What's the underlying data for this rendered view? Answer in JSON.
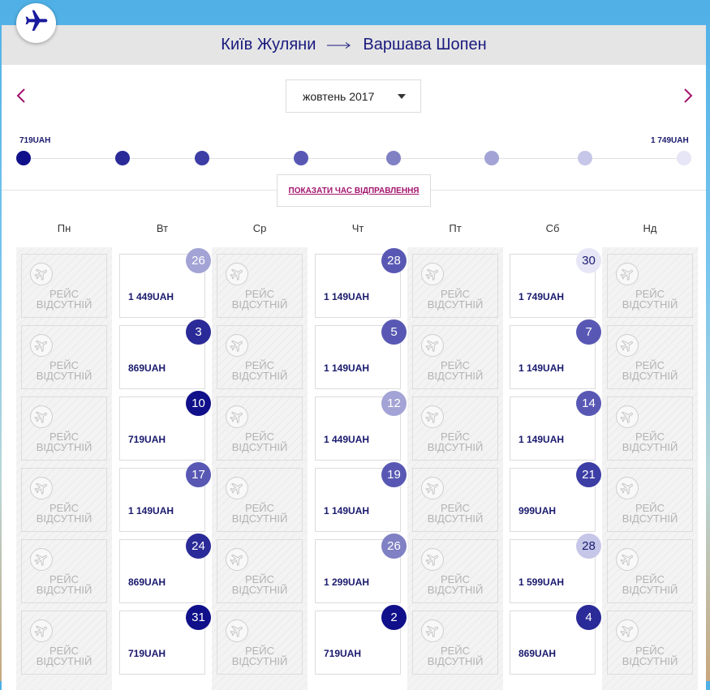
{
  "route": {
    "from": "Київ Жуляни",
    "to": "Варшава Шопен"
  },
  "icons": {
    "logo": "airplane-icon",
    "prev": "chevron-left-icon",
    "next": "chevron-right-icon",
    "na": "airplane-icon"
  },
  "colors": {
    "accent": "#a3146e",
    "navy": "#1a1a6e"
  },
  "month": {
    "selected": "жовтень 2017"
  },
  "price_scale": {
    "min_label": "719UAH",
    "max_label": "1 749UAH",
    "levels": [
      "#10108a",
      "#2a2a98",
      "#3d3da6",
      "#5858b4",
      "#8080c4",
      "#a3a3d6",
      "#c6c6e8",
      "#e6e6f6"
    ]
  },
  "departure_button": "ПОКАЗАТИ ЧАС ВІДПРАВЛЕННЯ",
  "weekdays": [
    "Пн",
    "Вт",
    "Ср",
    "Чт",
    "Пт",
    "Сб",
    "Нд"
  ],
  "unavailable_text": "РЕЙС ВІДСУТНІЙ",
  "weeks": [
    [
      {
        "na": true
      },
      {
        "day": "26",
        "price": "1 449UAH",
        "level": 5
      },
      {
        "na": true
      },
      {
        "day": "28",
        "price": "1 149UAH",
        "level": 3
      },
      {
        "na": true
      },
      {
        "day": "30",
        "price": "1 749UAH",
        "level": 7
      },
      {
        "na": true
      }
    ],
    [
      {
        "na": true
      },
      {
        "day": "3",
        "price": "869UAH",
        "level": 1
      },
      {
        "na": true
      },
      {
        "day": "5",
        "price": "1 149UAH",
        "level": 3
      },
      {
        "na": true
      },
      {
        "day": "7",
        "price": "1 149UAH",
        "level": 3
      },
      {
        "na": true
      }
    ],
    [
      {
        "na": true
      },
      {
        "day": "10",
        "price": "719UAH",
        "level": 0
      },
      {
        "na": true
      },
      {
        "day": "12",
        "price": "1 449UAH",
        "level": 5
      },
      {
        "na": true
      },
      {
        "day": "14",
        "price": "1 149UAH",
        "level": 3
      },
      {
        "na": true
      }
    ],
    [
      {
        "na": true
      },
      {
        "day": "17",
        "price": "1 149UAH",
        "level": 3
      },
      {
        "na": true
      },
      {
        "day": "19",
        "price": "1 149UAH",
        "level": 3
      },
      {
        "na": true
      },
      {
        "day": "21",
        "price": "999UAH",
        "level": 2
      },
      {
        "na": true
      }
    ],
    [
      {
        "na": true
      },
      {
        "day": "24",
        "price": "869UAH",
        "level": 1
      },
      {
        "na": true
      },
      {
        "day": "26",
        "price": "1 299UAH",
        "level": 4
      },
      {
        "na": true
      },
      {
        "day": "28",
        "price": "1 599UAH",
        "level": 6
      },
      {
        "na": true
      }
    ],
    [
      {
        "na": true
      },
      {
        "day": "31",
        "price": "719UAH",
        "level": 0
      },
      {
        "na": true
      },
      {
        "day": "2",
        "price": "719UAH",
        "level": 0
      },
      {
        "na": true
      },
      {
        "day": "4",
        "price": "869UAH",
        "level": 1
      },
      {
        "na": true
      }
    ]
  ]
}
